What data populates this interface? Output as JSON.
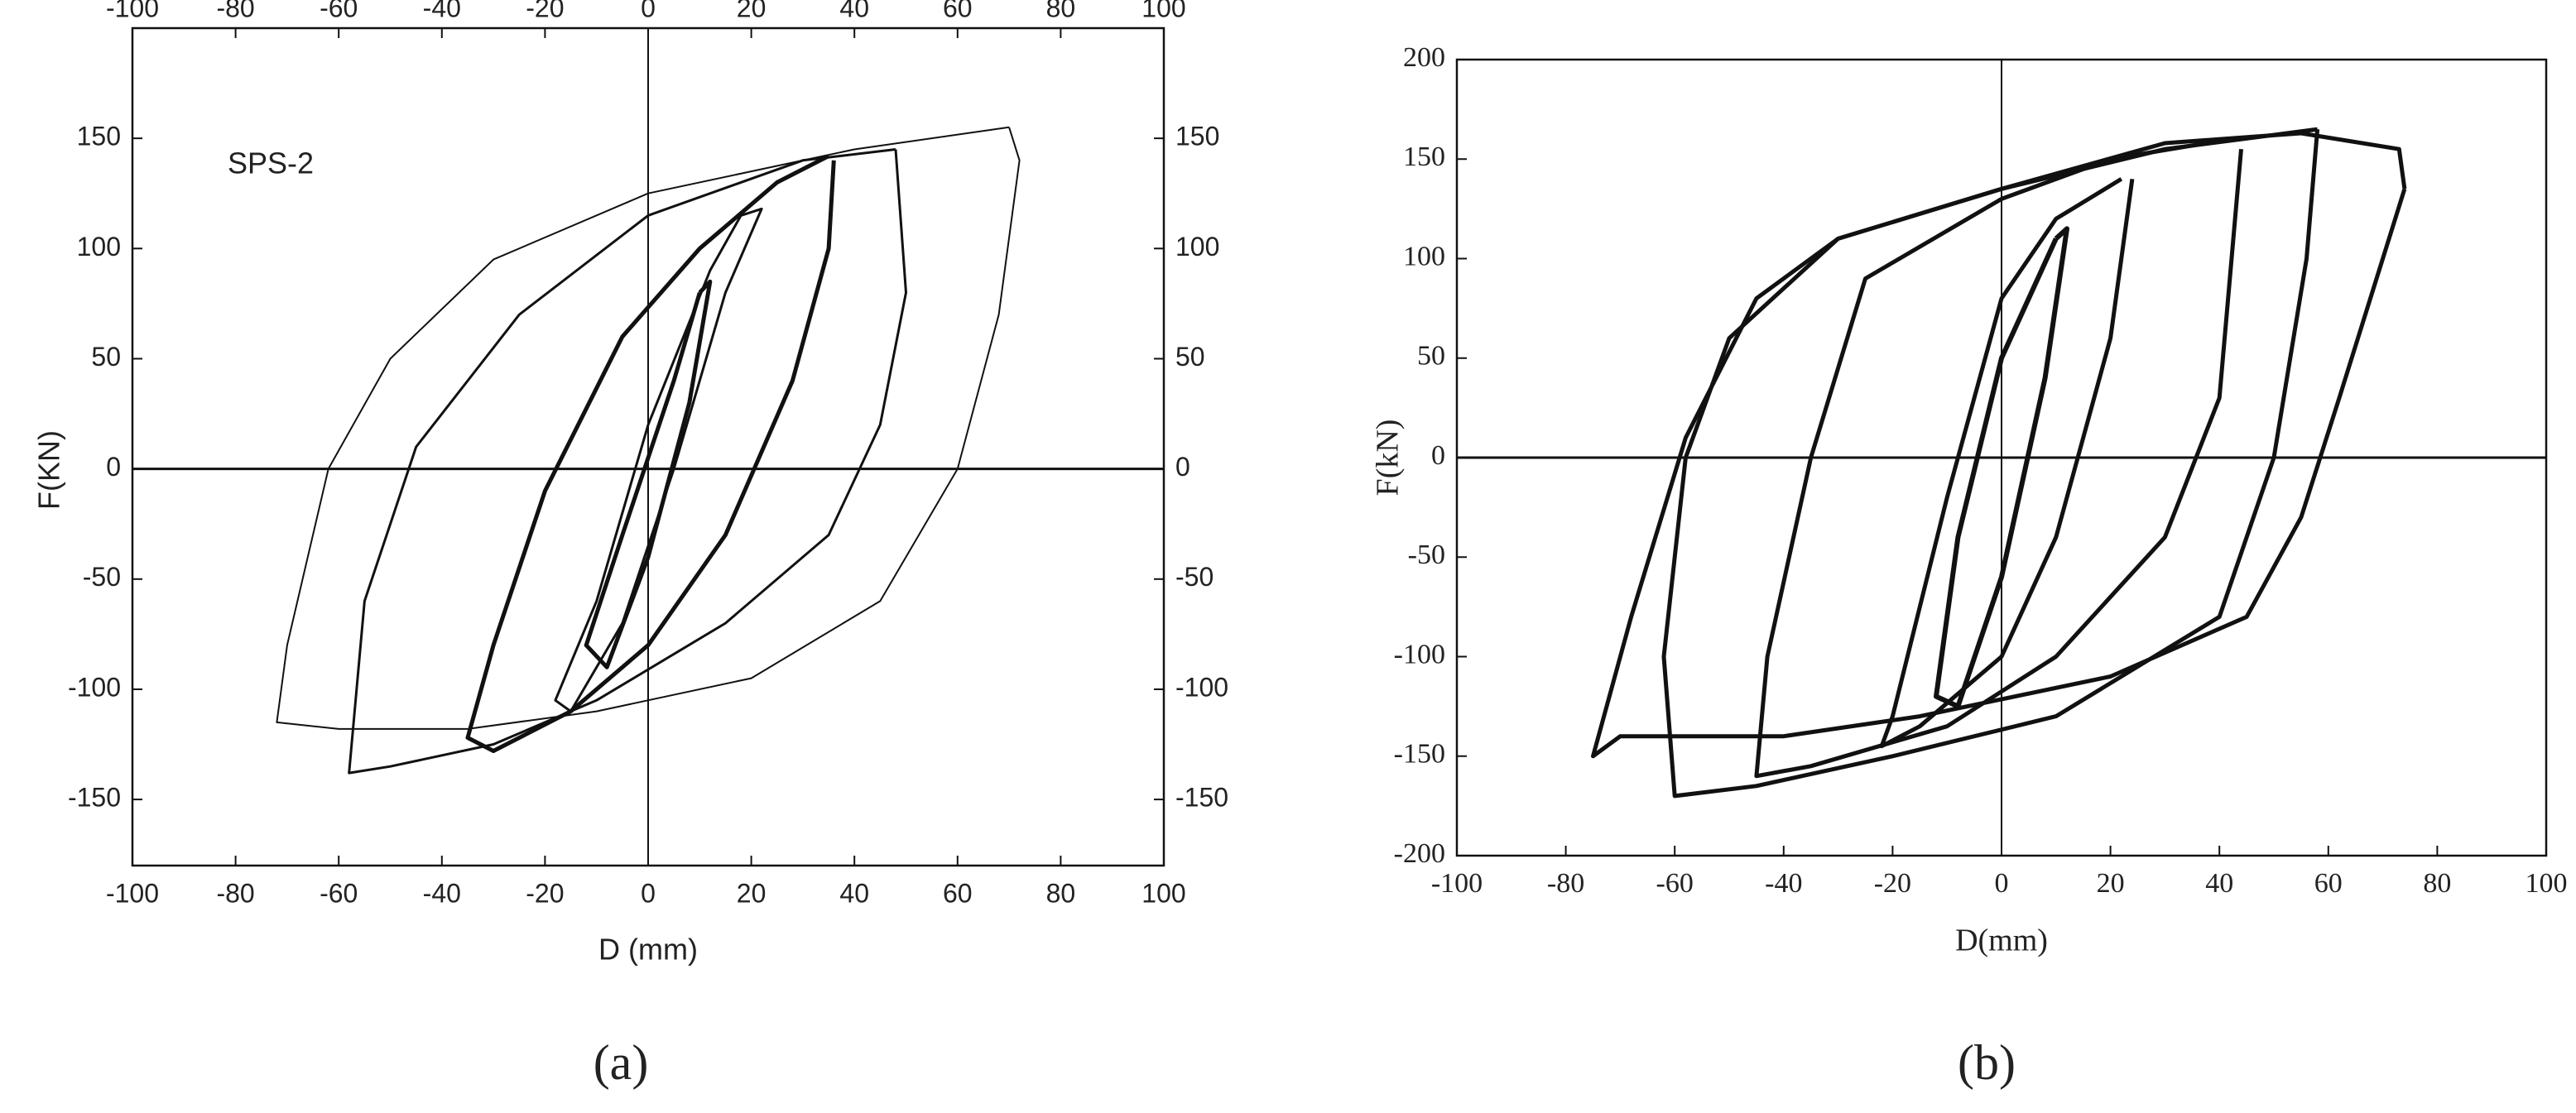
{
  "chart_data": [
    {
      "type": "line",
      "annotation": "SPS-2",
      "xlabel": "D (mm)",
      "ylabel": "F(KN)",
      "caption": "(a)",
      "xlim": [
        -100,
        100
      ],
      "xticks": [
        -100,
        -80,
        -60,
        -40,
        -20,
        0,
        20,
        40,
        60,
        80,
        100
      ],
      "x2lim": [
        -100,
        100
      ],
      "x2ticks": [
        -100,
        -80,
        -60,
        -40,
        -20,
        0,
        20,
        40,
        60,
        80,
        100
      ],
      "ylim": [
        -180,
        200
      ],
      "yticks": [
        -150,
        -100,
        -50,
        0,
        50,
        100,
        150
      ],
      "y2lim": [
        -180,
        200
      ],
      "y2ticks": [
        -150,
        -100,
        -50,
        0,
        50,
        100,
        150
      ],
      "color": "#111111",
      "series": [
        {
          "line_width": 5,
          "x": [
            10,
            5,
            -5,
            -12,
            -8,
            0,
            8,
            12,
            10
          ],
          "values": [
            80,
            40,
            -30,
            -80,
            -90,
            -40,
            30,
            85,
            80
          ]
        },
        {
          "line_width": 3,
          "x": [
            18,
            12,
            0,
            -10,
            -18,
            -15,
            -5,
            5,
            15,
            22,
            18
          ],
          "values": [
            115,
            90,
            20,
            -60,
            -105,
            -110,
            -70,
            0,
            80,
            118,
            115
          ]
        },
        {
          "line_width": 5,
          "x": [
            35,
            25,
            10,
            -5,
            -20,
            -30,
            -35,
            -30,
            -15,
            0,
            15,
            28,
            35,
            36
          ],
          "values": [
            142,
            130,
            100,
            60,
            -10,
            -80,
            -122,
            -128,
            -110,
            -80,
            -30,
            40,
            100,
            140
          ]
        },
        {
          "line_width": 3,
          "x": [
            48,
            30,
            0,
            -25,
            -45,
            -55,
            -58,
            -50,
            -30,
            -10,
            15,
            35,
            45,
            50,
            48
          ],
          "values": [
            145,
            140,
            115,
            70,
            10,
            -60,
            -138,
            -135,
            -125,
            -105,
            -70,
            -30,
            20,
            80,
            145
          ]
        },
        {
          "line_width": 2,
          "x": [
            70,
            40,
            0,
            -30,
            -50,
            -62,
            -70,
            -72,
            -60,
            -35,
            -10,
            20,
            45,
            60,
            68,
            72,
            70
          ],
          "values": [
            155,
            145,
            125,
            95,
            50,
            0,
            -80,
            -115,
            -118,
            -118,
            -110,
            -95,
            -60,
            0,
            70,
            140,
            155
          ]
        }
      ]
    },
    {
      "type": "line",
      "xlabel": "D(mm)",
      "ylabel": "F(kN)",
      "caption": "(b)",
      "xlim": [
        -100,
        100
      ],
      "xticks": [
        -100,
        -80,
        -60,
        -40,
        -20,
        0,
        20,
        40,
        60,
        80,
        100
      ],
      "ylim": [
        -200,
        200
      ],
      "yticks": [
        -200,
        -150,
        -100,
        -50,
        0,
        50,
        100,
        150,
        200
      ],
      "color": "#111111",
      "series": [
        {
          "line_width": 6,
          "x": [
            10,
            0,
            -8,
            -12,
            -8,
            0,
            8,
            12,
            10
          ],
          "values": [
            110,
            50,
            -40,
            -120,
            -125,
            -60,
            40,
            115,
            110
          ]
        },
        {
          "line_width": 5,
          "x": [
            22,
            10,
            0,
            -10,
            -20,
            -22,
            -15,
            0,
            10,
            20,
            24
          ],
          "values": [
            140,
            120,
            80,
            -20,
            -130,
            -145,
            -135,
            -100,
            -40,
            60,
            140
          ]
        },
        {
          "line_width": 5,
          "x": [
            42,
            20,
            0,
            -25,
            -35,
            -43,
            -45,
            -35,
            -10,
            10,
            30,
            40,
            44
          ],
          "values": [
            160,
            150,
            130,
            90,
            0,
            -100,
            -160,
            -155,
            -135,
            -100,
            -40,
            30,
            155
          ]
        },
        {
          "line_width": 5,
          "x": [
            58,
            30,
            0,
            -30,
            -50,
            -58,
            -62,
            -60,
            -45,
            -20,
            10,
            40,
            50,
            56,
            58
          ],
          "values": [
            165,
            155,
            135,
            110,
            60,
            0,
            -100,
            -170,
            -165,
            -150,
            -130,
            -80,
            0,
            100,
            165
          ]
        },
        {
          "line_width": 5,
          "x": [
            74,
            73,
            55,
            30,
            0,
            -30,
            -45,
            -58,
            -68,
            -75,
            -70,
            -40,
            -15,
            20,
            45,
            55,
            62,
            70,
            74
          ],
          "values": [
            135,
            155,
            163,
            158,
            135,
            110,
            80,
            10,
            -80,
            -150,
            -140,
            -140,
            -130,
            -110,
            -80,
            -30,
            30,
            100,
            135
          ]
        }
      ]
    }
  ]
}
